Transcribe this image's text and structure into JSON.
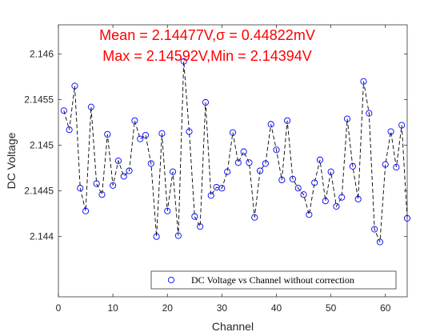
{
  "chart_data": {
    "type": "scatter",
    "xlabel": "Channel",
    "ylabel": "DC Voltage",
    "xlim": [
      0,
      64
    ],
    "ylim": [
      2.14334,
      2.14632
    ],
    "xticks": [
      0,
      10,
      20,
      30,
      40,
      50,
      60
    ],
    "yticks": [
      2.144,
      2.1445,
      2.145,
      2.1455,
      2.146
    ],
    "ytick_labels": [
      "2.144",
      "2.1445",
      "2.145",
      "2.1455",
      "2.146"
    ],
    "grid": false,
    "legend_position": "bottom-right",
    "line_style": "dashed",
    "colors": {
      "marker": "#0000ff",
      "line": "#000000",
      "annotation": "#ff0000"
    },
    "annotations": [
      "Mean = 2.14477V,σ = 0.44822mV",
      "Max = 2.14592V,Min = 2.14394V"
    ],
    "series": [
      {
        "name": "DC Voltage vs Channel without correction",
        "x": [
          1,
          2,
          3,
          4,
          5,
          6,
          7,
          8,
          9,
          10,
          11,
          12,
          13,
          14,
          15,
          16,
          17,
          18,
          19,
          20,
          21,
          22,
          23,
          24,
          25,
          26,
          27,
          28,
          29,
          30,
          31,
          32,
          33,
          34,
          35,
          36,
          37,
          38,
          39,
          40,
          41,
          42,
          43,
          44,
          45,
          46,
          47,
          48,
          49,
          50,
          51,
          52,
          53,
          54,
          55,
          56,
          57,
          58,
          59,
          60,
          61,
          62,
          63,
          64
        ],
        "y": [
          2.14538,
          2.14517,
          2.14565,
          2.14453,
          2.14428,
          2.14542,
          2.14458,
          2.14446,
          2.14512,
          2.14456,
          2.14483,
          2.14466,
          2.14472,
          2.14527,
          2.14507,
          2.14511,
          2.1448,
          2.144,
          2.14513,
          2.14428,
          2.14471,
          2.14401,
          2.14592,
          2.14515,
          2.14422,
          2.14411,
          2.14547,
          2.14445,
          2.14454,
          2.14453,
          2.14471,
          2.14514,
          2.14481,
          2.14493,
          2.14481,
          2.14421,
          2.14472,
          2.1448,
          2.14523,
          2.14495,
          2.14462,
          2.14527,
          2.14463,
          2.14453,
          2.14446,
          2.14424,
          2.14459,
          2.14484,
          2.14439,
          2.14471,
          2.14433,
          2.14443,
          2.14529,
          2.14477,
          2.14441,
          2.1457,
          2.14535,
          2.14408,
          2.14394,
          2.14479,
          2.14515,
          2.14476,
          2.14522,
          2.1442
        ]
      }
    ]
  }
}
